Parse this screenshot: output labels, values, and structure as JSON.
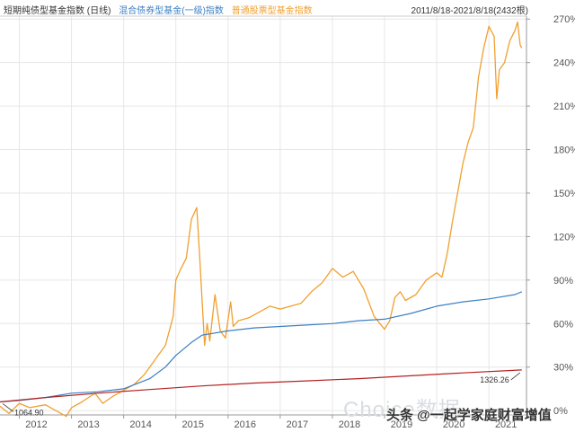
{
  "header": {
    "date_range": "2011/8/18-2021/8/18(2432根)"
  },
  "watermark": {
    "brand": "Choice数据",
    "source": "头条 @一起学家庭财富增值"
  },
  "colors": {
    "short_bond": "#b22222",
    "mixed_bond": "#3b7fc4",
    "equity": "#f0a030",
    "axis": "#999999",
    "grid": "#e6e6e6"
  },
  "chart_data": {
    "type": "line",
    "xlabel": "",
    "ylabel": "",
    "y_unit": "%",
    "ylim": [
      -3,
      272
    ],
    "xlim": [
      2011.63,
      2021.72
    ],
    "y_axis_position": "right",
    "grid": true,
    "y_ticks": [
      0,
      30,
      60,
      90,
      120,
      150,
      180,
      210,
      240,
      270
    ],
    "y_tick_labels": [
      "0%",
      "30%",
      "60%",
      "90%",
      "120%",
      "150%",
      "180%",
      "210%",
      "240%",
      "270%"
    ],
    "x_ticks": [
      2012,
      2013,
      2014,
      2015,
      2016,
      2017,
      2018,
      2019,
      2020,
      2021
    ],
    "x_tick_labels": [
      "2012",
      "2013",
      "2014",
      "2015",
      "2016",
      "2017",
      "2018",
      "2019",
      "2020",
      "2021"
    ],
    "annotations": [
      {
        "text": "1064.90",
        "series": "短期纯债型基金指数",
        "position": "start"
      },
      {
        "text": "1326.26",
        "series": "短期纯债型基金指数",
        "position": "end"
      }
    ],
    "series": [
      {
        "name": "短期纯债型基金指数",
        "label": "短期纯债型基金指数 (日线)",
        "color": "#b22222",
        "x": [
          2011.63,
          2012.5,
          2013.5,
          2014.5,
          2015.5,
          2016.5,
          2017.5,
          2018.5,
          2019.5,
          2020.5,
          2021.63
        ],
        "y": [
          6,
          9,
          12,
          14.5,
          17,
          19,
          20.5,
          22,
          24,
          26,
          28
        ]
      },
      {
        "name": "混合债券型基金(一级)指数",
        "label": "混合债券型基金(一级)指数",
        "color": "#3b7fc4",
        "x": [
          2011.63,
          2012.0,
          2012.5,
          2013.0,
          2013.5,
          2014.0,
          2014.5,
          2014.8,
          2015.0,
          2015.3,
          2015.5,
          2016.0,
          2016.5,
          2017.0,
          2017.5,
          2018.0,
          2018.5,
          2019.0,
          2019.5,
          2020.0,
          2020.5,
          2021.0,
          2021.5,
          2021.63
        ],
        "y": [
          6,
          7,
          9,
          12,
          13,
          15,
          22,
          30,
          38,
          47,
          52,
          55,
          57,
          58,
          59,
          60,
          62,
          63,
          67,
          72,
          75,
          77,
          80,
          82
        ]
      },
      {
        "name": "普通股票型基金指数",
        "label": "普通股票型基金指数",
        "color": "#f0a030",
        "x": [
          2011.63,
          2011.8,
          2012.0,
          2012.2,
          2012.5,
          2012.7,
          2012.9,
          2013.0,
          2013.2,
          2013.45,
          2013.6,
          2013.8,
          2014.0,
          2014.2,
          2014.4,
          2014.6,
          2014.8,
          2014.95,
          2015.0,
          2015.1,
          2015.2,
          2015.3,
          2015.4,
          2015.45,
          2015.55,
          2015.6,
          2015.65,
          2015.75,
          2015.85,
          2015.95,
          2016.05,
          2016.1,
          2016.2,
          2016.4,
          2016.6,
          2016.8,
          2017.0,
          2017.2,
          2017.4,
          2017.6,
          2017.8,
          2018.0,
          2018.2,
          2018.4,
          2018.6,
          2018.8,
          2019.0,
          2019.1,
          2019.2,
          2019.3,
          2019.4,
          2019.6,
          2019.8,
          2020.0,
          2020.1,
          2020.2,
          2020.3,
          2020.5,
          2020.6,
          2020.7,
          2020.8,
          2020.9,
          2021.0,
          2021.1,
          2021.15,
          2021.2,
          2021.3,
          2021.4,
          2021.5,
          2021.55,
          2021.6,
          2021.63
        ],
        "y": [
          3,
          -2,
          5,
          2,
          4,
          0,
          -4,
          2,
          6,
          12,
          5,
          10,
          14,
          18,
          25,
          35,
          45,
          65,
          90,
          98,
          105,
          132,
          140,
          110,
          45,
          60,
          48,
          80,
          55,
          50,
          75,
          58,
          62,
          64,
          68,
          72,
          70,
          72,
          74,
          82,
          88,
          98,
          92,
          96,
          84,
          65,
          56,
          62,
          78,
          82,
          76,
          80,
          90,
          95,
          92,
          108,
          130,
          170,
          185,
          195,
          230,
          250,
          265,
          258,
          215,
          235,
          240,
          255,
          262,
          268,
          252,
          250
        ]
      }
    ]
  }
}
